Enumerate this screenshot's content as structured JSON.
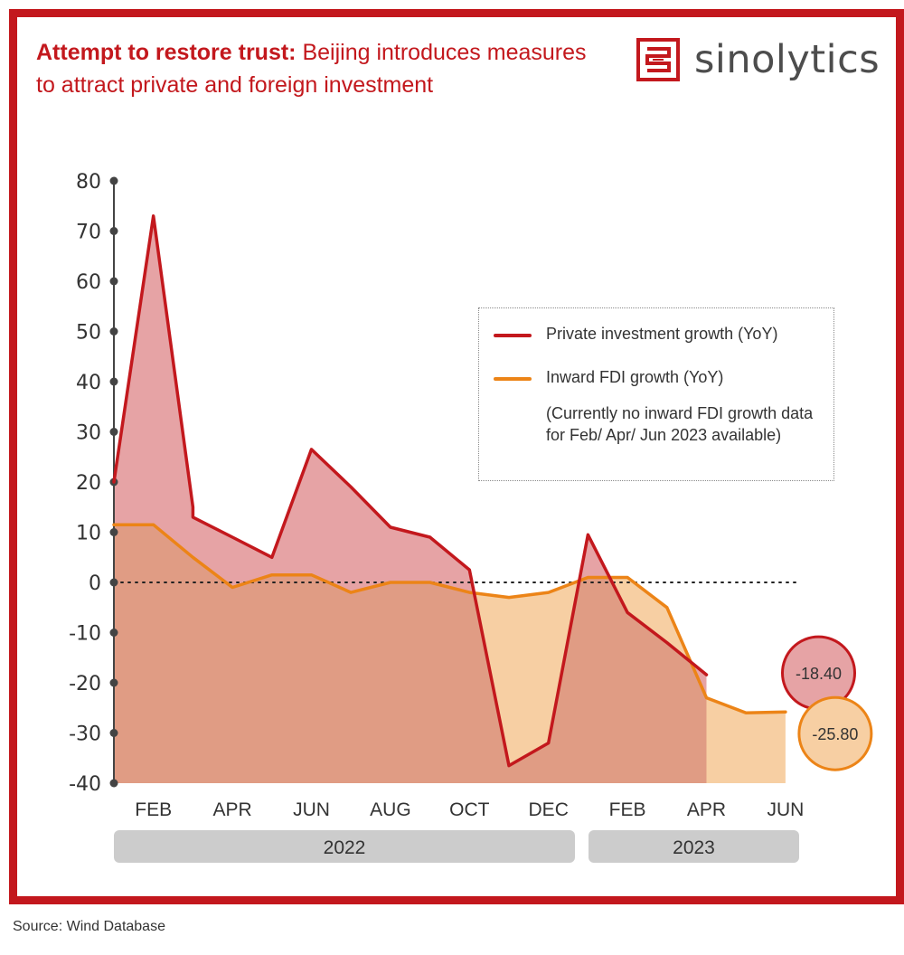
{
  "header": {
    "title_bold": "Attempt to restore trust:",
    "title_rest": " Beijing introduces measures to attract private and foreign investment"
  },
  "brand": {
    "name": "sinolytics",
    "logo_icon": "sinolytics-seal-icon"
  },
  "legend": {
    "private_label": "Private investment growth (YoY)",
    "fdi_label": "Inward FDI growth (YoY)",
    "note": "(Currently no inward FDI growth data for Feb/ Apr/ Jun 2023 available)"
  },
  "source": "Source: Wind Database",
  "colors": {
    "frame": "#c3181d",
    "private_line": "#c3181d",
    "private_fill": "#e6a3a5",
    "fdi_line": "#ec8417",
    "fdi_fill": "#f7cfa3",
    "overlap_fill": "#e09c84",
    "year_band": "#cccccc"
  },
  "chart_data": {
    "type": "area",
    "ylim": [
      -40,
      80
    ],
    "yticks": [
      80,
      70,
      60,
      50,
      40,
      30,
      20,
      10,
      0,
      -10,
      -20,
      -30,
      -40
    ],
    "x_tick_labels": [
      "FEB",
      "APR",
      "JUN",
      "AUG",
      "OCT",
      "DEC",
      "FEB",
      "APR",
      "JUN"
    ],
    "x_tick_months": [
      "2022-02",
      "2022-04",
      "2022-06",
      "2022-08",
      "2022-10",
      "2022-12",
      "2023-02",
      "2023-04",
      "2023-06"
    ],
    "year_groups": [
      {
        "label": "2022",
        "from": "2022-01",
        "to": "2022-12"
      },
      {
        "label": "2023",
        "from": "2023-01",
        "to": "2023-06"
      }
    ],
    "zero_line": "dotted",
    "series": [
      {
        "name": "Private investment growth (YoY)",
        "color": "#c3181d",
        "points": [
          [
            "2022-01",
            20
          ],
          [
            "2022-02",
            73
          ],
          [
            "2022-03",
            15
          ],
          [
            "2022-03",
            13
          ],
          [
            "2022-04",
            9
          ],
          [
            "2022-05",
            5
          ],
          [
            "2022-06",
            26.5
          ],
          [
            "2022-07",
            19
          ],
          [
            "2022-08",
            11
          ],
          [
            "2022-09",
            9
          ],
          [
            "2022-10",
            2.5
          ],
          [
            "2022-11",
            -36.5
          ],
          [
            "2022-12",
            -32
          ],
          [
            "2023-01",
            9.5
          ],
          [
            "2023-02",
            -6
          ],
          [
            "2023-03",
            -12
          ],
          [
            "2023-04",
            -18.4
          ]
        ],
        "end_label": "-18.40"
      },
      {
        "name": "Inward FDI growth (YoY)",
        "color": "#ec8417",
        "points": [
          [
            "2022-01",
            11.5
          ],
          [
            "2022-02",
            11.5
          ],
          [
            "2022-03",
            5
          ],
          [
            "2022-04",
            -1
          ],
          [
            "2022-05",
            1.5
          ],
          [
            "2022-06",
            1.5
          ],
          [
            "2022-07",
            -2
          ],
          [
            "2022-08",
            0
          ],
          [
            "2022-09",
            0
          ],
          [
            "2022-10",
            -2
          ],
          [
            "2022-11",
            -3
          ],
          [
            "2022-12",
            -2
          ],
          [
            "2023-01",
            1
          ],
          [
            "2023-02",
            1
          ],
          [
            "2023-03",
            -5
          ],
          [
            "2023-04",
            -23
          ],
          [
            "2023-05",
            -26
          ],
          [
            "2023-06",
            -25.8
          ]
        ],
        "end_label": "-25.80"
      }
    ]
  }
}
